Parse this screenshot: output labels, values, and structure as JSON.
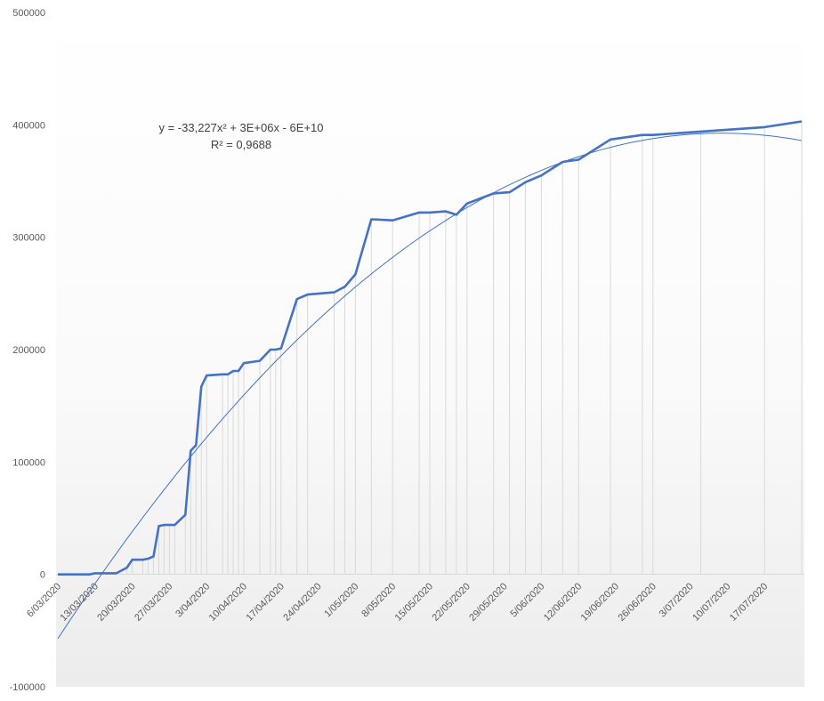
{
  "chart_data": {
    "type": "line",
    "title": "",
    "xlabel": "",
    "ylabel": "",
    "ylim": [
      -100000,
      500000
    ],
    "yticks": [
      -100000,
      0,
      100000,
      200000,
      300000,
      400000,
      500000
    ],
    "ytick_labels": [
      "-100000",
      "0",
      "100000",
      "200000",
      "300000",
      "400000",
      "500000"
    ],
    "xlim": [
      "2020-03-06",
      "2020-07-24"
    ],
    "xtick_labels": [
      "6/03/2020",
      "13/03/2020",
      "20/03/2020",
      "27/03/2020",
      "3/04/2020",
      "10/04/2020",
      "17/04/2020",
      "24/04/2020",
      "1/05/2020",
      "8/05/2020",
      "15/05/2020",
      "22/05/2020",
      "29/05/2020",
      "5/06/2020",
      "12/06/2020",
      "19/06/2020",
      "26/06/2020",
      "3/07/2020",
      "10/07/2020",
      "17/07/2020"
    ],
    "xtick_dates": [
      "2020-03-06",
      "2020-03-13",
      "2020-03-20",
      "2020-03-27",
      "2020-04-03",
      "2020-04-10",
      "2020-04-17",
      "2020-04-24",
      "2020-05-01",
      "2020-05-08",
      "2020-05-15",
      "2020-05-22",
      "2020-05-29",
      "2020-06-05",
      "2020-06-12",
      "2020-06-19",
      "2020-06-26",
      "2020-07-03",
      "2020-07-10",
      "2020-07-17"
    ],
    "drop_lines": true,
    "grid": false,
    "legend": "none",
    "series": [
      {
        "color": "#4472c4",
        "points": [
          [
            "2020-03-06",
            0
          ],
          [
            "2020-03-12",
            0
          ],
          [
            "2020-03-13",
            1000
          ],
          [
            "2020-03-16",
            1000
          ],
          [
            "2020-03-17",
            1000
          ],
          [
            "2020-03-19",
            6000
          ],
          [
            "2020-03-20",
            13000
          ],
          [
            "2020-03-22",
            13000
          ],
          [
            "2020-03-23",
            14000
          ],
          [
            "2020-03-24",
            16000
          ],
          [
            "2020-03-25",
            43000
          ],
          [
            "2020-03-26",
            44000
          ],
          [
            "2020-03-27",
            44000
          ],
          [
            "2020-03-28",
            44000
          ],
          [
            "2020-03-30",
            53000
          ],
          [
            "2020-03-31",
            110000
          ],
          [
            "2020-04-01",
            115000
          ],
          [
            "2020-04-02",
            167000
          ],
          [
            "2020-04-03",
            177000
          ],
          [
            "2020-04-06",
            178000
          ],
          [
            "2020-04-07",
            178000
          ],
          [
            "2020-04-08",
            181000
          ],
          [
            "2020-04-09",
            181000
          ],
          [
            "2020-04-10",
            188000
          ],
          [
            "2020-04-13",
            190000
          ],
          [
            "2020-04-15",
            200000
          ],
          [
            "2020-04-16",
            200000
          ],
          [
            "2020-04-17",
            201000
          ],
          [
            "2020-04-20",
            245000
          ],
          [
            "2020-04-22",
            249000
          ],
          [
            "2020-04-27",
            251000
          ],
          [
            "2020-04-29",
            256000
          ],
          [
            "2020-05-01",
            267000
          ],
          [
            "2020-05-04",
            316000
          ],
          [
            "2020-05-08",
            315000
          ],
          [
            "2020-05-13",
            322000
          ],
          [
            "2020-05-15",
            322000
          ],
          [
            "2020-05-18",
            323000
          ],
          [
            "2020-05-20",
            320000
          ],
          [
            "2020-05-22",
            330000
          ],
          [
            "2020-05-27",
            339000
          ],
          [
            "2020-05-30",
            340000
          ],
          [
            "2020-06-02",
            349000
          ],
          [
            "2020-06-05",
            355000
          ],
          [
            "2020-06-09",
            367000
          ],
          [
            "2020-06-12",
            369000
          ],
          [
            "2020-06-18",
            387000
          ],
          [
            "2020-06-24",
            391000
          ],
          [
            "2020-06-26",
            391000
          ],
          [
            "2020-07-05",
            394000
          ],
          [
            "2020-07-17",
            398000
          ],
          [
            "2020-07-24",
            403000
          ]
        ]
      }
    ],
    "trendline": {
      "type": "polynomial",
      "order": 2,
      "color": "#4472c4",
      "equation": "y = -33,227x² + 3E+06x - 6E+10",
      "r_squared": "R² = 0,9688",
      "points": [
        [
          "2020-03-06",
          -60000
        ],
        [
          "2020-03-20",
          40000
        ],
        [
          "2020-04-03",
          125000
        ],
        [
          "2020-04-17",
          196000
        ],
        [
          "2020-05-01",
          255000
        ],
        [
          "2020-05-15",
          302000
        ],
        [
          "2020-05-29",
          341000
        ],
        [
          "2020-06-12",
          372000
        ],
        [
          "2020-06-26",
          391000
        ],
        [
          "2020-07-10",
          396000
        ],
        [
          "2020-07-24",
          383000
        ]
      ]
    }
  }
}
